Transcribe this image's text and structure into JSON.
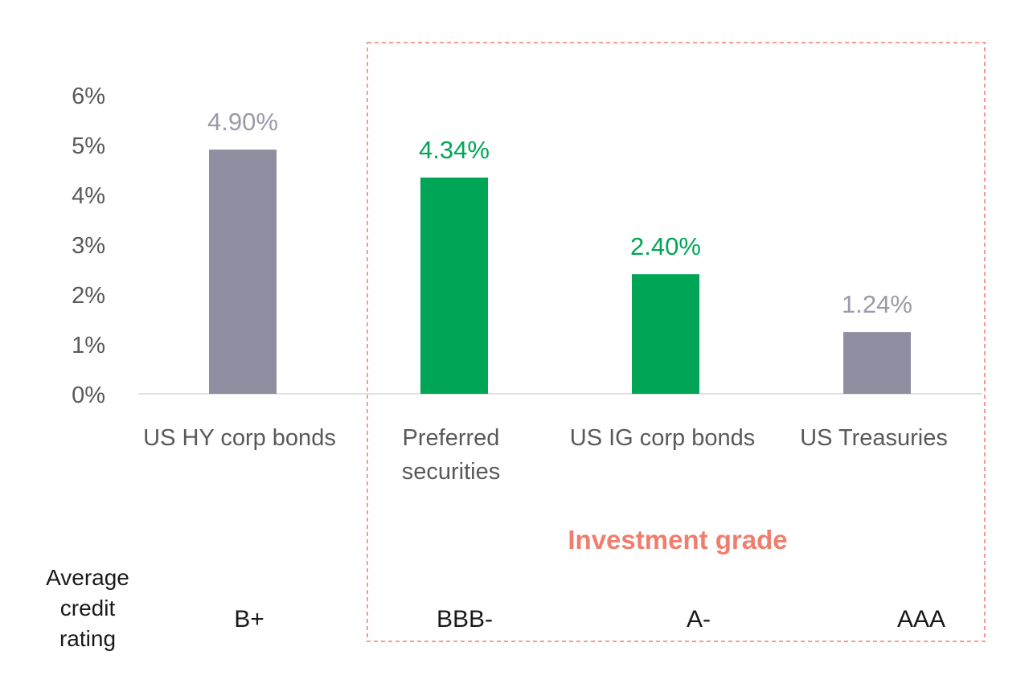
{
  "chart_data": {
    "type": "bar",
    "categories": [
      "US HY corp bonds",
      "Preferred securities",
      "US IG corp bonds",
      "US Treasuries"
    ],
    "category_lines": [
      [
        "US HY corp bonds"
      ],
      [
        "Preferred",
        "securities"
      ],
      [
        "US IG corp bonds"
      ],
      [
        "US Treasuries"
      ]
    ],
    "values": [
      4.9,
      4.34,
      2.4,
      1.24
    ],
    "value_labels": [
      "4.90%",
      "4.34%",
      "2.40%",
      "1.24%"
    ],
    "bar_colors": [
      "#8e8ea0",
      "#00a656",
      "#00a656",
      "#8e8ea0"
    ],
    "label_colors": [
      "#9a9aaa",
      "#00a656",
      "#00a656",
      "#9a9aaa"
    ],
    "ylim": [
      0,
      6
    ],
    "yticks": [
      "0%",
      "1%",
      "2%",
      "3%",
      "4%",
      "5%",
      "6%"
    ],
    "grid": false,
    "title": "",
    "xlabel": "",
    "ylabel": "",
    "group_label": "Investment grade",
    "group_color": "#f07e6e",
    "rating_title_lines": [
      "Average",
      "credit",
      "rating"
    ],
    "ratings": [
      "B+",
      "BBB-",
      "A-",
      "AAA"
    ]
  }
}
